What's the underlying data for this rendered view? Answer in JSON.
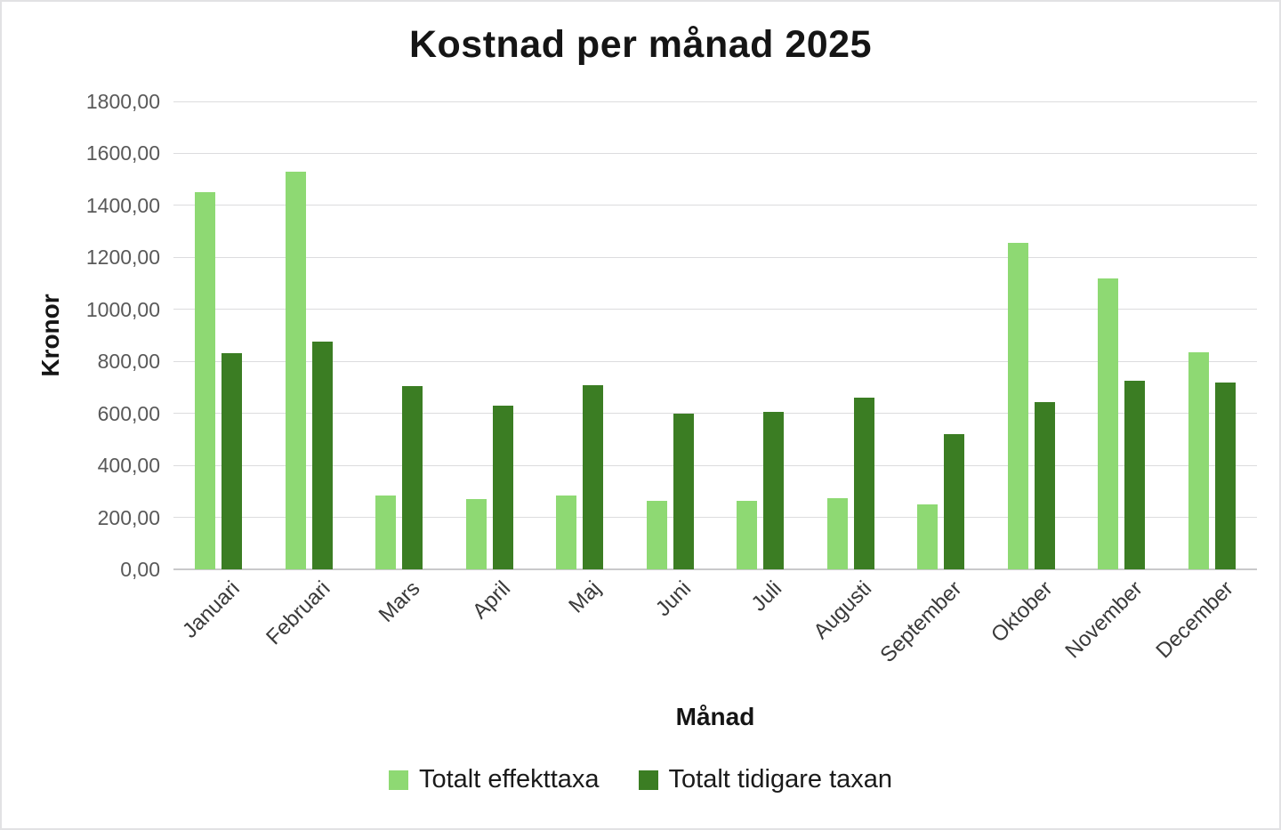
{
  "chart_data": {
    "type": "bar",
    "title": "Kostnad per månad 2025",
    "xlabel": "Månad",
    "ylabel": "Kronor",
    "categories": [
      "Januari",
      "Februari",
      "Mars",
      "April",
      "Maj",
      "Juni",
      "Juli",
      "Augusti",
      "September",
      "Oktober",
      "November",
      "December"
    ],
    "series": [
      {
        "name": "Totalt effekttaxa",
        "color": "#8ED973",
        "values": [
          1450,
          1530,
          285,
          270,
          285,
          265,
          265,
          275,
          250,
          1255,
          1120,
          835
        ]
      },
      {
        "name": "Totalt tidigare taxan",
        "color": "#3B7D23",
        "values": [
          830,
          875,
          705,
          630,
          710,
          600,
          605,
          660,
          520,
          645,
          725,
          720
        ]
      }
    ],
    "ylim": [
      0,
      1800
    ],
    "ytick_step": 200,
    "ytick_labels": [
      "0,00",
      "200,00",
      "400,00",
      "600,00",
      "800,00",
      "1000,00",
      "1200,00",
      "1400,00",
      "1600,00",
      "1800,00"
    ],
    "grid": true,
    "legend_position": "bottom"
  },
  "colors": {
    "gridline": "#DCDCDE",
    "axis_line": "#C9C9CB",
    "y_tick_label": "#595959",
    "x_tick_label": "#3A3A3A",
    "text": "#151515",
    "border": "#E2E2E4"
  }
}
